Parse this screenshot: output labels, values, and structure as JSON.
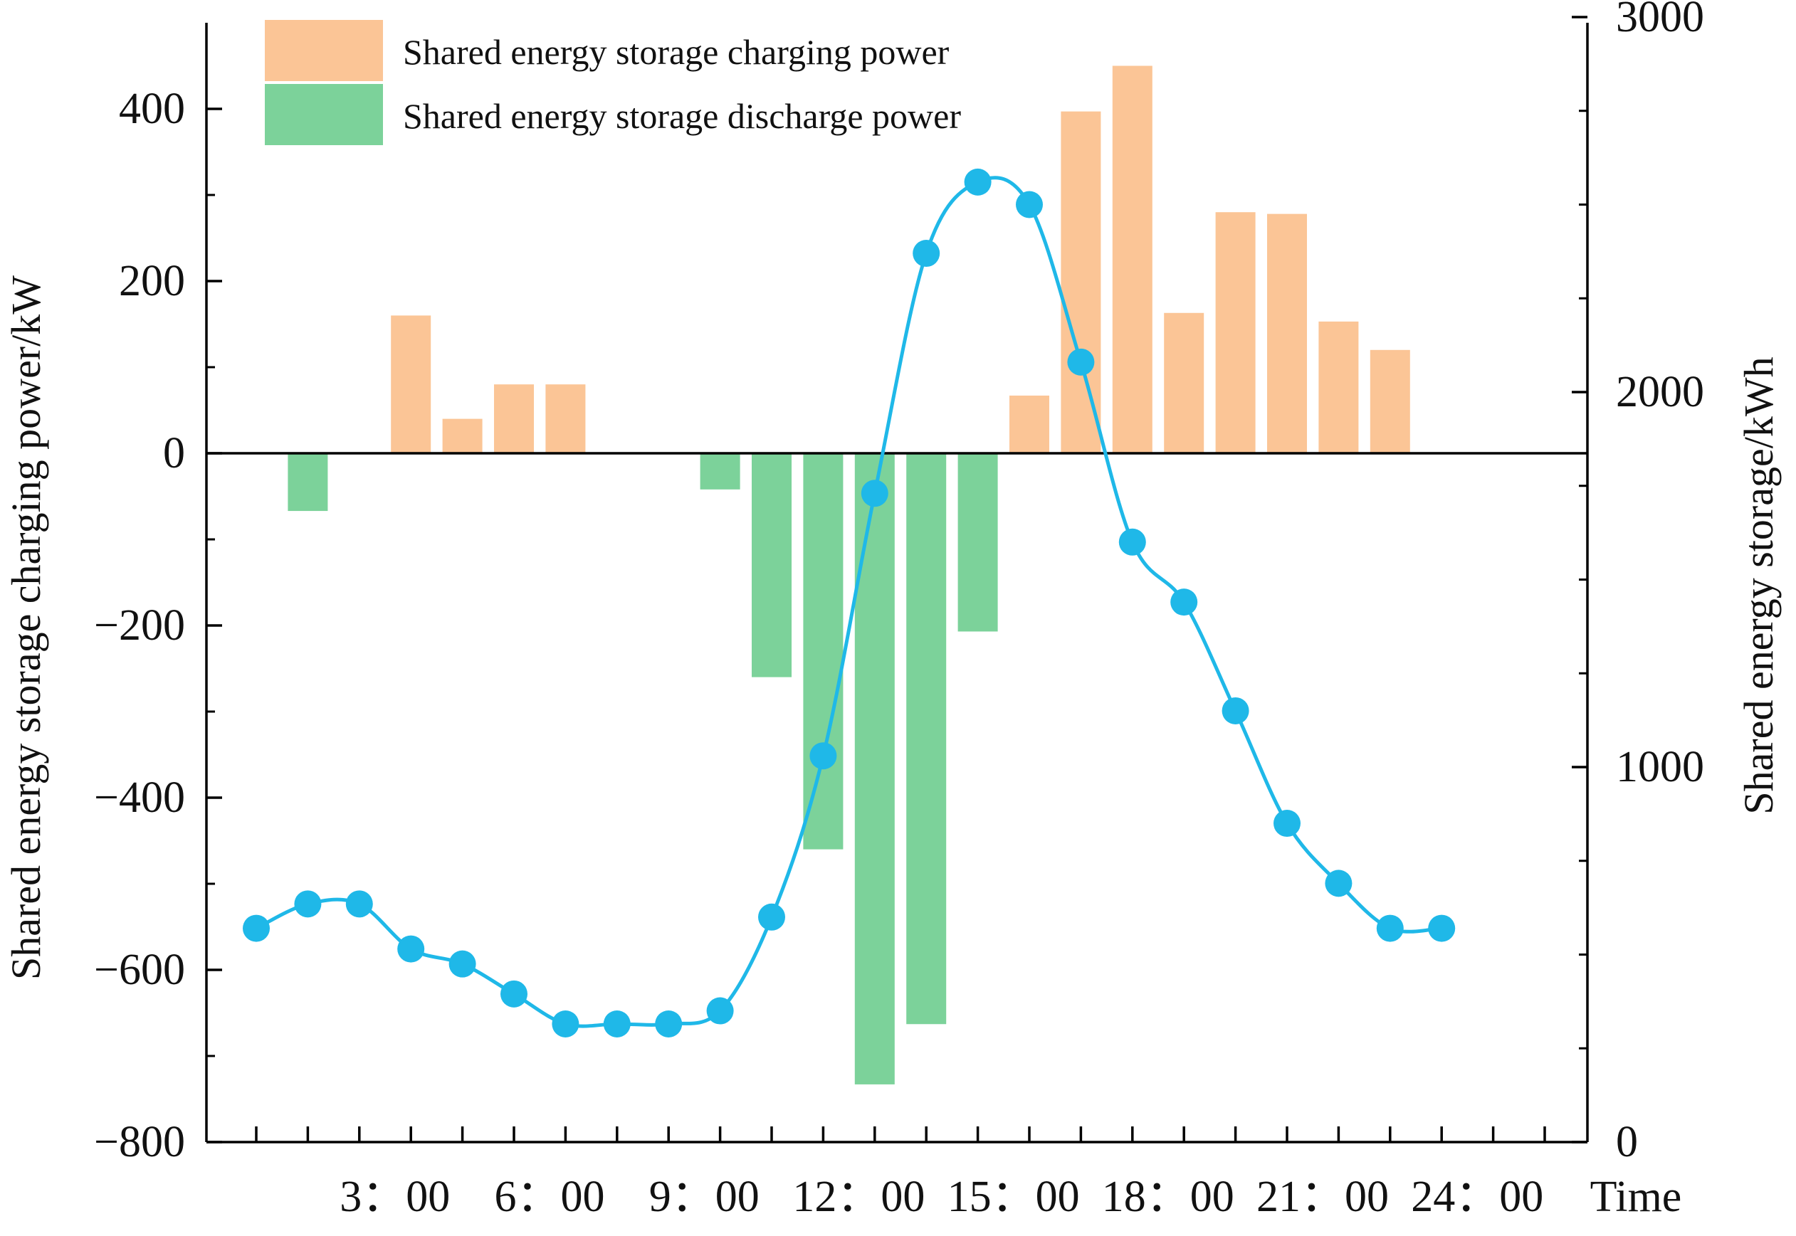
{
  "chart_data": {
    "type": "bar+line",
    "title": "",
    "xlabel": "Time",
    "ylabel_left": "Shared energy storage charging power/kW",
    "ylabel_right": "Shared energy storage/kWh",
    "x_tick_labels": [
      "3：00",
      "6：00",
      "9：00",
      "12：00",
      "15：00",
      "18：00",
      "21：00",
      "24：00"
    ],
    "x_tick_hours": [
      3,
      6,
      9,
      12,
      15,
      18,
      21,
      24
    ],
    "hours": [
      1,
      2,
      3,
      4,
      5,
      6,
      7,
      8,
      9,
      10,
      11,
      12,
      13,
      14,
      15,
      16,
      17,
      18,
      19,
      20,
      21,
      22,
      23,
      24
    ],
    "y_left_range": [
      -800,
      500
    ],
    "y_left_ticks": [
      -800,
      -600,
      -400,
      -200,
      0,
      200,
      400
    ],
    "y_left_tick_labels": [
      "−800",
      "−600",
      "−400",
      "−200",
      "0",
      "200",
      "400"
    ],
    "y_right_range": [
      0,
      3000
    ],
    "y_right_ticks": [
      0,
      1000,
      2000,
      3000
    ],
    "y_right_tick_labels": [
      "0",
      "1000",
      "2000",
      "3000"
    ],
    "legend_position": "top-left",
    "grid": false,
    "series": [
      {
        "name": "Shared energy storage charging power",
        "kind": "bar",
        "axis": "left",
        "color": "#FBC596",
        "points": [
          {
            "hour": 4,
            "value": 160
          },
          {
            "hour": 5,
            "value": 40
          },
          {
            "hour": 6,
            "value": 80
          },
          {
            "hour": 7,
            "value": 80
          },
          {
            "hour": 16,
            "value": 67
          },
          {
            "hour": 17,
            "value": 397
          },
          {
            "hour": 18,
            "value": 450
          },
          {
            "hour": 19,
            "value": 163
          },
          {
            "hour": 20,
            "value": 280
          },
          {
            "hour": 21,
            "value": 278
          },
          {
            "hour": 22,
            "value": 153
          },
          {
            "hour": 23,
            "value": 120
          }
        ]
      },
      {
        "name": "Shared energy storage discharge power",
        "kind": "bar",
        "axis": "left",
        "color": "#7CD29A",
        "points": [
          {
            "hour": 2,
            "value": -67
          },
          {
            "hour": 10,
            "value": -42
          },
          {
            "hour": 11,
            "value": -260
          },
          {
            "hour": 12,
            "value": -460
          },
          {
            "hour": 13,
            "value": -733
          },
          {
            "hour": 14,
            "value": -663
          },
          {
            "hour": 15,
            "value": -207
          }
        ]
      },
      {
        "name": "Shared energy storage",
        "kind": "line",
        "axis": "right",
        "color": "#1FB8E8",
        "points": [
          {
            "hour": 1,
            "value": 570
          },
          {
            "hour": 2,
            "value": 635
          },
          {
            "hour": 3,
            "value": 635
          },
          {
            "hour": 4,
            "value": 515
          },
          {
            "hour": 5,
            "value": 475
          },
          {
            "hour": 6,
            "value": 395
          },
          {
            "hour": 7,
            "value": 315
          },
          {
            "hour": 8,
            "value": 315
          },
          {
            "hour": 9,
            "value": 315
          },
          {
            "hour": 10,
            "value": 350
          },
          {
            "hour": 11,
            "value": 600
          },
          {
            "hour": 12,
            "value": 1030
          },
          {
            "hour": 13,
            "value": 1730
          },
          {
            "hour": 14,
            "value": 2370
          },
          {
            "hour": 15,
            "value": 2560
          },
          {
            "hour": 16,
            "value": 2500
          },
          {
            "hour": 17,
            "value": 2080
          },
          {
            "hour": 18,
            "value": 1600
          },
          {
            "hour": 19,
            "value": 1440
          },
          {
            "hour": 20,
            "value": 1150
          },
          {
            "hour": 21,
            "value": 850
          },
          {
            "hour": 22,
            "value": 690
          },
          {
            "hour": 23,
            "value": 570
          },
          {
            "hour": 24,
            "value": 570
          }
        ]
      }
    ]
  }
}
